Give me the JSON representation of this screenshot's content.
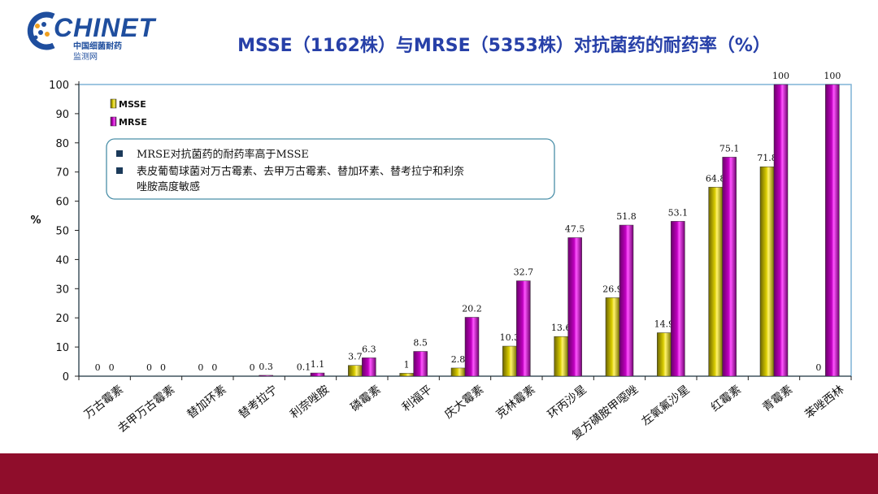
{
  "header": {
    "logo_word": "CHINET",
    "logo_sub1": "中国细菌耐药",
    "logo_sub2": "监测网",
    "title": "MSSE（1162株）与MRSE（5353株）对抗菌药的耐药率（%）"
  },
  "colors": {
    "msse": "#d9cc00",
    "mrse": "#c000c0",
    "plot_border": "#7fb3d5",
    "title": "#2740a8",
    "footer": "#8f0d2b"
  },
  "annotation": {
    "lines": [
      "MRSE对抗菌药的耐药率高于MSSE",
      "表皮葡萄球菌对万古霉素、去甲万古霉素、替加环素、替考拉宁和利奈",
      "唑胺高度敏感"
    ]
  },
  "chart_data": {
    "type": "bar",
    "title": "MSSE（1162株）与MRSE（5353株）对抗菌药的耐药率（%）",
    "xlabel": "",
    "ylabel": "%",
    "ylim": [
      0,
      100
    ],
    "yticks": [
      0,
      10,
      20,
      30,
      40,
      50,
      60,
      70,
      80,
      90,
      100
    ],
    "grid": false,
    "legend_position": "top-left",
    "categories": [
      "万古霉素",
      "去甲万古霉素",
      "替加环素",
      "替考拉宁",
      "利奈唑胺",
      "磷霉素",
      "利福平",
      "庆大霉素",
      "克林霉素",
      "环丙沙星",
      "复方磺胺甲噁唑",
      "左氧氟沙星",
      "红霉素",
      "青霉素",
      "苯唑西林"
    ],
    "series": [
      {
        "name": "MSSE",
        "values": [
          0,
          0,
          0,
          0,
          0.1,
          3.7,
          1,
          2.8,
          10.3,
          13.6,
          26.9,
          14.9,
          64.8,
          71.8,
          0
        ],
        "labels": [
          "0",
          "0",
          "0",
          "0",
          "0.1",
          "3.7",
          "1",
          "2.8",
          "10.3",
          "13.6",
          "26.9",
          "14.9",
          "64.8",
          "71.8",
          "0"
        ]
      },
      {
        "name": "MRSE",
        "values": [
          0,
          0,
          0,
          0.3,
          1.1,
          6.3,
          8.5,
          20.2,
          32.7,
          47.5,
          51.8,
          53.1,
          75.1,
          100,
          100
        ],
        "labels": [
          "0",
          "0",
          "0",
          "0.3",
          "1.1",
          "6.3",
          "8.5",
          "20.2",
          "32.7",
          "47.5",
          "51.8",
          "53.1",
          "75.1",
          "100",
          "100"
        ]
      }
    ]
  }
}
